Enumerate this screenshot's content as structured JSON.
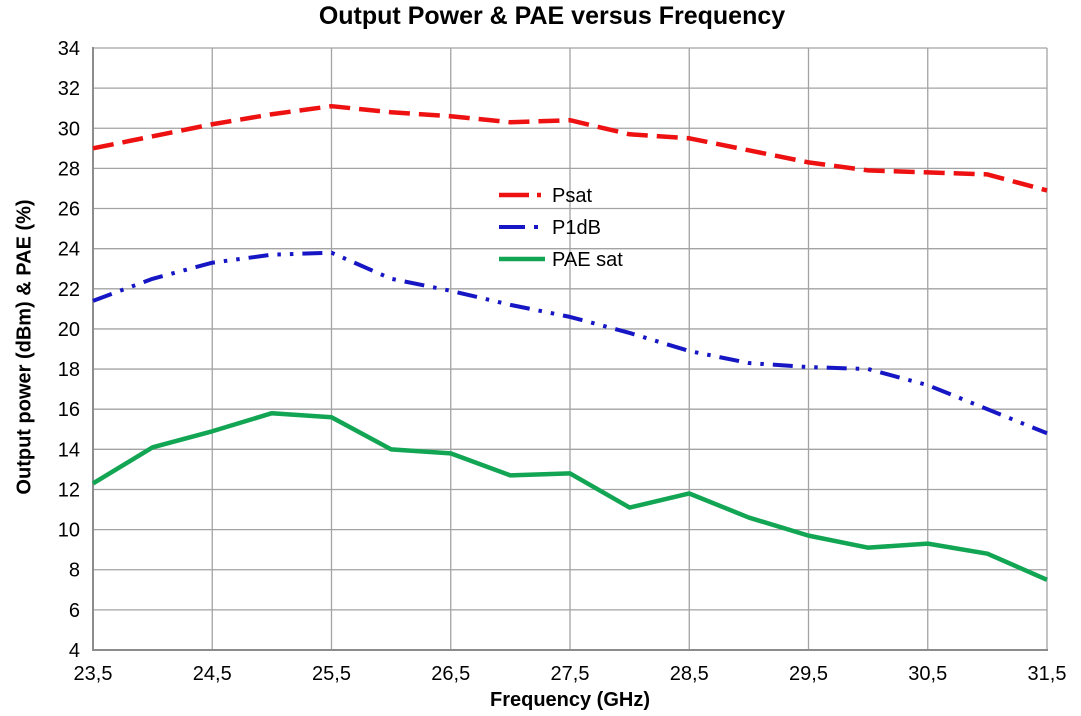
{
  "chart_data": {
    "type": "line",
    "title": "Output Power & PAE versus Frequency",
    "xlabel": "Frequency (GHz)",
    "ylabel": "Output power (dBm) & PAE (%)",
    "xlim": [
      23.5,
      31.5
    ],
    "ylim": [
      4,
      34
    ],
    "grid": true,
    "legend_position": "inside-upper-center",
    "x_ticks": [
      23.5,
      24.5,
      25.5,
      26.5,
      27.5,
      28.5,
      29.5,
      30.5,
      31.5
    ],
    "x_tick_labels": [
      "23,5",
      "24,5",
      "25,5",
      "26,5",
      "27,5",
      "28,5",
      "29,5",
      "30,5",
      "31,5"
    ],
    "y_ticks": [
      4,
      6,
      8,
      10,
      12,
      14,
      16,
      18,
      20,
      22,
      24,
      26,
      28,
      30,
      32,
      34
    ],
    "x": [
      23.5,
      24.0,
      24.5,
      25.0,
      25.5,
      26.0,
      26.5,
      27.0,
      27.5,
      28.0,
      28.5,
      29.0,
      29.5,
      30.0,
      30.5,
      31.0,
      31.5
    ],
    "series": [
      {
        "name": "Psat",
        "color": "#EE1111",
        "style": "long-dash",
        "values": [
          29.0,
          29.6,
          30.2,
          30.7,
          31.1,
          30.8,
          30.6,
          30.3,
          30.4,
          29.7,
          29.5,
          28.9,
          28.3,
          27.9,
          27.8,
          27.7,
          26.9
        ]
      },
      {
        "name": "P1dB",
        "color": "#1616C4",
        "style": "dash-dot-dot",
        "values": [
          21.4,
          22.5,
          23.3,
          23.7,
          23.8,
          22.5,
          21.9,
          21.2,
          20.6,
          19.8,
          18.9,
          18.3,
          18.1,
          18.0,
          17.2,
          16.0,
          14.8
        ]
      },
      {
        "name": "PAE sat",
        "color": "#12A553",
        "style": "solid",
        "values": [
          12.3,
          14.1,
          14.9,
          15.8,
          15.6,
          14.0,
          13.8,
          12.7,
          12.8,
          11.1,
          11.8,
          10.6,
          9.7,
          9.1,
          9.3,
          8.8,
          7.5
        ]
      }
    ],
    "colors": {
      "grid": "#A3A3A3",
      "axis": "#8C8C8C",
      "text": "#000000",
      "background": "#FFFFFF"
    }
  }
}
